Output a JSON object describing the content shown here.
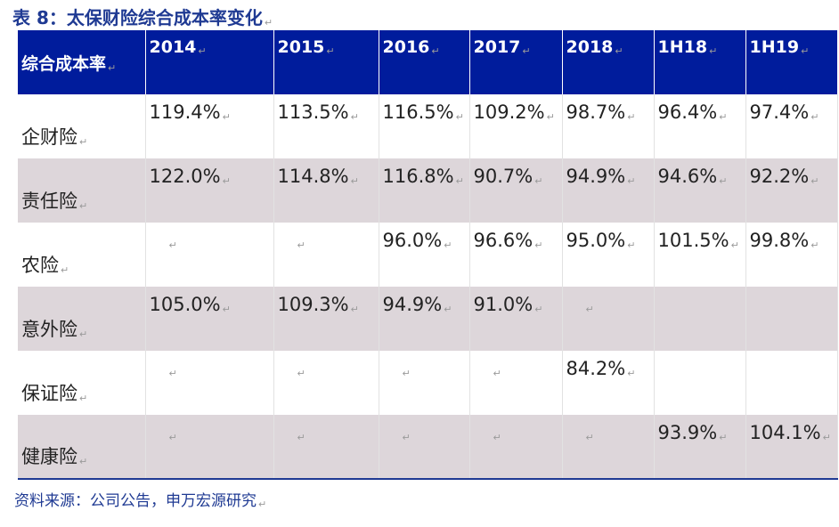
{
  "title": "表 8：太保财险综合成本率变化",
  "table": {
    "header": [
      "综合成本率",
      "2014",
      "2015",
      "2016",
      "2017",
      "2018",
      "1H18",
      "1H19"
    ],
    "rows": [
      {
        "label": "企财险",
        "cells": [
          "119.4%",
          "113.5%",
          "116.5%",
          "109.2%",
          "98.7%",
          "96.4%",
          "97.4%"
        ],
        "shade": false
      },
      {
        "label": "责任险",
        "cells": [
          "122.0%",
          "114.8%",
          "116.8%",
          "90.7%",
          "94.9%",
          "94.6%",
          "92.2%"
        ],
        "shade": true
      },
      {
        "label": "农险",
        "cells": [
          "",
          "",
          "96.0%",
          "96.6%",
          "95.0%",
          "101.5%",
          "99.8%"
        ],
        "shade": false
      },
      {
        "label": "意外险",
        "cells": [
          "105.0%",
          "109.3%",
          "94.9%",
          "91.0%",
          "",
          "",
          ""
        ],
        "shade": true
      },
      {
        "label": "保证险",
        "cells": [
          "",
          "",
          "",
          "",
          "84.2%",
          "",
          ""
        ],
        "shade": false
      },
      {
        "label": "健康险",
        "cells": [
          "",
          "",
          "",
          "",
          "",
          "93.9%",
          "104.1%"
        ],
        "shade": true
      }
    ]
  },
  "source": "资料来源：公司公告，申万宏源研究"
}
